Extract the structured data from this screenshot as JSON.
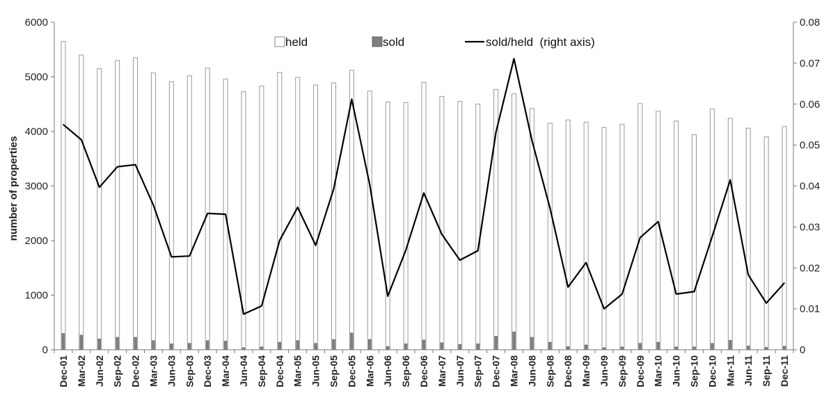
{
  "chart_data": {
    "type": "bar",
    "title": "",
    "xlabel": "",
    "ylabel": "number of properties",
    "ylabel_right": "",
    "ylim": [
      0,
      6000
    ],
    "ylim_right": [
      0,
      0.08
    ],
    "yticks": [
      "0",
      "1000",
      "2000",
      "3000",
      "4000",
      "5000",
      "6000"
    ],
    "yticks_right": [
      "0",
      "0.01",
      "0.02",
      "0.03",
      "0.04",
      "0.05",
      "0.06",
      "0.07",
      "0.08"
    ],
    "grid": false,
    "legend_position": "top-center",
    "categories": [
      "Dec-01",
      "Mar-02",
      "Jun-02",
      "Sep-02",
      "Dec-02",
      "Mar-03",
      "Jun-03",
      "Sep-03",
      "Dec-03",
      "Mar-04",
      "Jun-04",
      "Sep-04",
      "Dec-04",
      "Mar-05",
      "Jun-05",
      "Sep-05",
      "Dec-05",
      "Mar-06",
      "Jun-06",
      "Sep-06",
      "Dec-06",
      "Mar-07",
      "Jun-07",
      "Sep-07",
      "Dec-07",
      "Mar-08",
      "Jun-08",
      "Sep-08",
      "Dec-08",
      "Mar-09",
      "Jun-09",
      "Sep-09",
      "Dec-09",
      "Mar-10",
      "Jun-10",
      "Sep-10",
      "Dec-10",
      "Mar-11",
      "Jun-11",
      "Sep-11",
      "Dec-11"
    ],
    "series": [
      {
        "name": "held",
        "kind": "bar",
        "axis": "left",
        "color": "#ffffff",
        "stroke": "#999999",
        "values": [
          5650,
          5400,
          5150,
          5300,
          5350,
          5070,
          4910,
          5020,
          5160,
          4960,
          4730,
          4830,
          5080,
          4990,
          4850,
          4890,
          5120,
          4740,
          4540,
          4530,
          4900,
          4640,
          4550,
          4500,
          4770,
          4690,
          4420,
          4150,
          4210,
          4170,
          4070,
          4130,
          4510,
          4370,
          4190,
          3940,
          4410,
          4240,
          4060,
          3900,
          4090
        ]
      },
      {
        "name": "sold",
        "kind": "bar",
        "axis": "left",
        "color": "#7f7f7f",
        "stroke": "#666666",
        "values": [
          300,
          270,
          200,
          230,
          230,
          170,
          110,
          120,
          170,
          160,
          40,
          55,
          140,
          170,
          120,
          190,
          310,
          190,
          60,
          110,
          180,
          130,
          100,
          110,
          250,
          330,
          230,
          140,
          60,
          90,
          40,
          55,
          120,
          140,
          55,
          55,
          120,
          175,
          70,
          45,
          65
        ]
      },
      {
        "name": "sold/held  (right axis)",
        "kind": "line",
        "axis": "right",
        "color": "#000000",
        "values": [
          0.055,
          0.0513,
          0.0397,
          0.0447,
          0.0452,
          0.0353,
          0.0227,
          0.0229,
          0.0333,
          0.0331,
          0.0087,
          0.0107,
          0.0267,
          0.0348,
          0.0255,
          0.0393,
          0.0612,
          0.0403,
          0.0131,
          0.0243,
          0.0383,
          0.0282,
          0.0219,
          0.0242,
          0.0531,
          0.0711,
          0.0511,
          0.0346,
          0.0153,
          0.0213,
          0.01,
          0.0136,
          0.0274,
          0.0313,
          0.0136,
          0.0142,
          0.0277,
          0.0415,
          0.0183,
          0.0114,
          0.0163
        ]
      }
    ]
  }
}
